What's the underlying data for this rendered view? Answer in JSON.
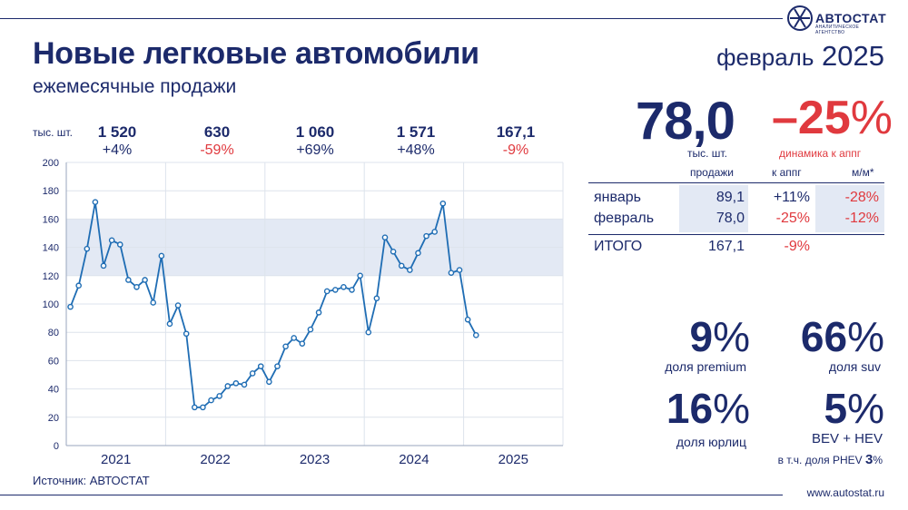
{
  "header": {
    "title": "Новые легковые автомобили",
    "subtitle": "ежемесячные продажи",
    "period_month": "февраль",
    "period_year": "2025",
    "logo_name": "АВТОСТАТ",
    "logo_tagline": "АНАЛИТИЧЕСКОЕ АГЕНТСТВО"
  },
  "annual": {
    "unit": "тыс. шт.",
    "items": [
      {
        "value": "1 520",
        "change": "+4%",
        "color": "#1c2a6b"
      },
      {
        "value": "630",
        "change": "-59%",
        "color": "#e0393e"
      },
      {
        "value": "1 060",
        "change": "+69%",
        "color": "#1c2a6b"
      },
      {
        "value": "1 571",
        "change": "+48%",
        "color": "#1c2a6b"
      },
      {
        "value": "167,1",
        "change": "-9%",
        "color": "#e0393e"
      }
    ]
  },
  "summary": {
    "value": "78,0",
    "value_unit": "тыс. шт.",
    "change_sign": "–",
    "change_value": "25",
    "change_pct": "%",
    "change_label": "динамика к аппг"
  },
  "table": {
    "headers": [
      "продажи",
      "к аппг",
      "м/м*"
    ],
    "rows": [
      {
        "label": "январь",
        "sales": "89,1",
        "yoy": "+11%",
        "mom": "-28%"
      },
      {
        "label": "февраль",
        "sales": "78,0",
        "yoy": "-25%",
        "mom": "-12%"
      }
    ],
    "total": {
      "label": "ИТОГО",
      "sales": "167,1",
      "yoy": "-9%"
    }
  },
  "kpis": [
    {
      "value": "9",
      "pct": "%",
      "label": "доля premium"
    },
    {
      "value": "66",
      "pct": "%",
      "label": "доля suv"
    },
    {
      "value": "16",
      "pct": "%",
      "label": "доля юрлиц"
    },
    {
      "value": "5",
      "pct": "%",
      "label": "BEV + HEV"
    }
  ],
  "phev_note": {
    "text": "в т.ч. доля PHEV ",
    "value": "3",
    "pct": "%"
  },
  "footer": {
    "source": "Источник: АВТОСТАТ",
    "url": "www.autostat.ru"
  },
  "colors": {
    "navy": "#1c2a6b",
    "red": "#e0393e",
    "line": "#1f6db4",
    "band": "#e3e9f4"
  },
  "chart_data": {
    "type": "line",
    "title": "",
    "xlabel": "",
    "ylabel": "",
    "ylim": [
      0,
      200
    ],
    "yticks": [
      "0",
      "20",
      "40",
      "60",
      "80",
      "100",
      "120",
      "140",
      "160",
      "180",
      "200"
    ],
    "band": [
      120,
      160
    ],
    "grid": true,
    "x_year_labels": [
      "2021",
      "2022",
      "2023",
      "2024",
      "2025"
    ],
    "series": [
      {
        "values": [
          98,
          113,
          139,
          172,
          127,
          145,
          142,
          117,
          112,
          117,
          101,
          134,
          86,
          99,
          79,
          27,
          27,
          32,
          35,
          42,
          44,
          43,
          51,
          56,
          45,
          56,
          70,
          76,
          72,
          82,
          94,
          109,
          110,
          112,
          110,
          120,
          80,
          104,
          147,
          137,
          127,
          124,
          136,
          148,
          151,
          171,
          122,
          124,
          89,
          78
        ]
      }
    ]
  }
}
